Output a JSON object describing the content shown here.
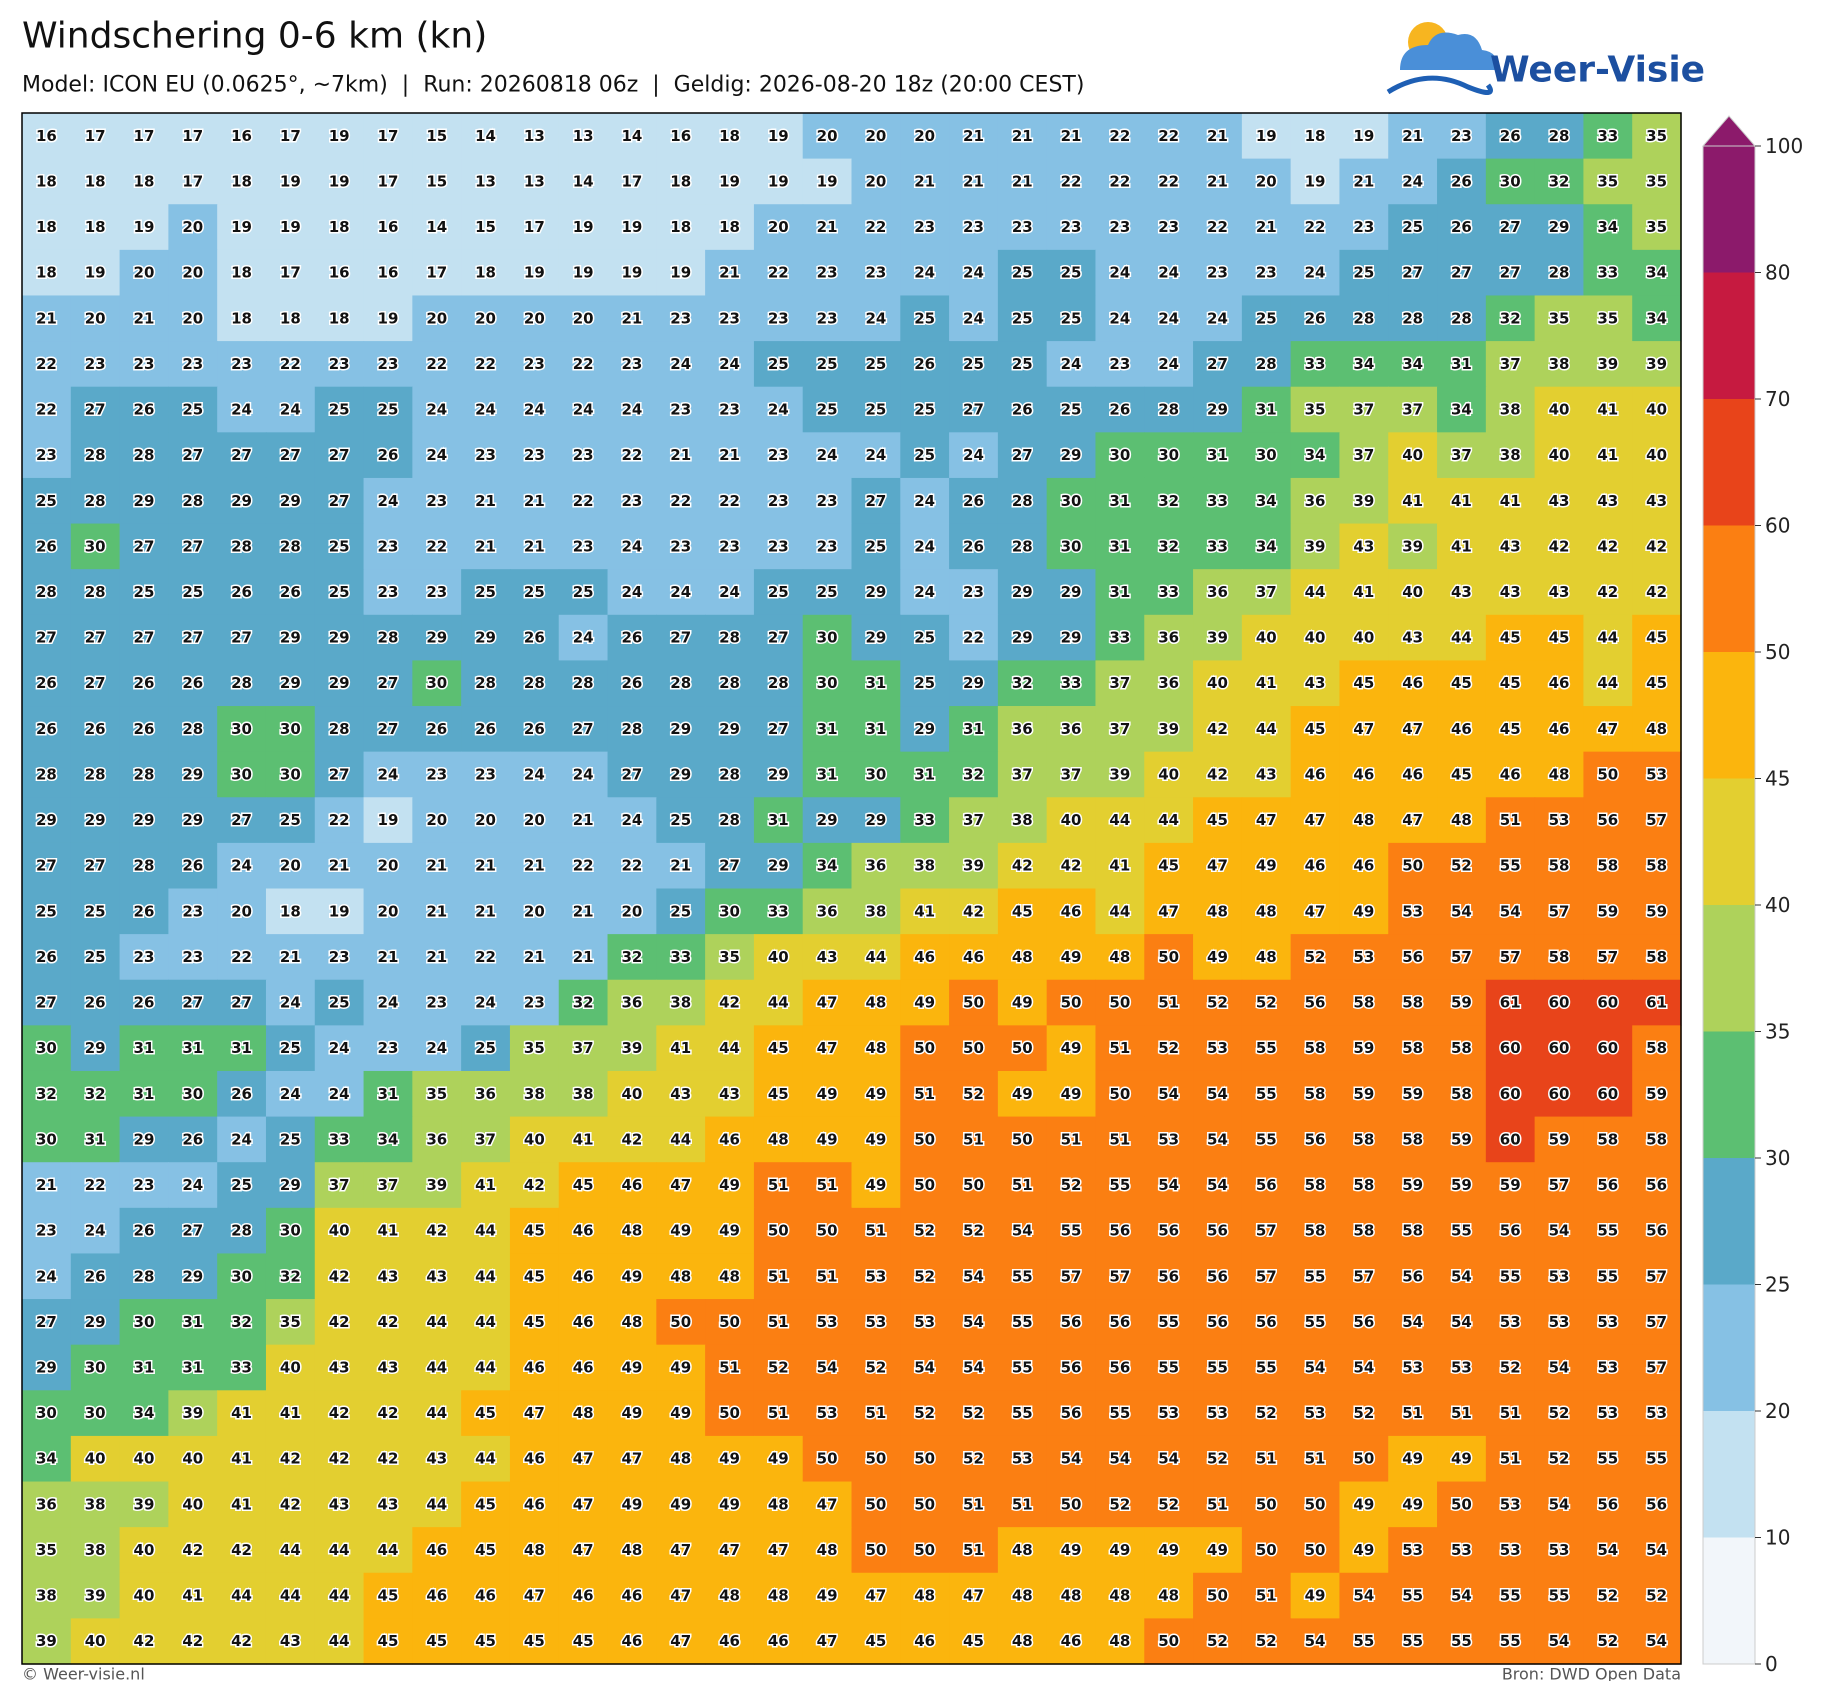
{
  "header": {
    "title": "Windschering 0-6 km (kn)",
    "subtitle": "Model: ICON EU (0.0625°, ~7km)  |  Run: 20260818 06z  |  Geldig: 2026-08-20 18z (20:00 CEST)",
    "logo": "Weer-Visie"
  },
  "map": {
    "values": [
      [
        16,
        17,
        17,
        17,
        16,
        17,
        19,
        17,
        15,
        14,
        13,
        13,
        14,
        16,
        18,
        19,
        20,
        20,
        20,
        21,
        21,
        21,
        22,
        22,
        21,
        19,
        18,
        19,
        21,
        23,
        26,
        28,
        33,
        35
      ],
      [
        18,
        18,
        18,
        17,
        18,
        19,
        19,
        17,
        15,
        13,
        13,
        14,
        17,
        18,
        19,
        19,
        19,
        20,
        21,
        21,
        21,
        22,
        22,
        22,
        21,
        20,
        19,
        21,
        24,
        26,
        30,
        32,
        35,
        35
      ],
      [
        18,
        18,
        19,
        20,
        19,
        19,
        18,
        16,
        14,
        15,
        17,
        19,
        19,
        18,
        18,
        20,
        21,
        22,
        23,
        23,
        23,
        23,
        23,
        23,
        22,
        21,
        22,
        23,
        25,
        26,
        27,
        29,
        34,
        35
      ],
      [
        18,
        19,
        20,
        20,
        18,
        17,
        16,
        16,
        17,
        18,
        19,
        19,
        19,
        19,
        21,
        22,
        23,
        23,
        24,
        24,
        25,
        25,
        24,
        24,
        23,
        23,
        24,
        25,
        27,
        27,
        27,
        28,
        33,
        34
      ],
      [
        21,
        20,
        21,
        20,
        18,
        18,
        18,
        19,
        20,
        20,
        20,
        20,
        21,
        23,
        23,
        23,
        23,
        24,
        25,
        24,
        25,
        25,
        24,
        24,
        24,
        25,
        26,
        28,
        28,
        28,
        32,
        35,
        35,
        34
      ],
      [
        22,
        23,
        23,
        23,
        23,
        22,
        23,
        23,
        22,
        22,
        23,
        22,
        23,
        24,
        24,
        25,
        25,
        25,
        26,
        25,
        25,
        24,
        23,
        24,
        27,
        28,
        33,
        34,
        34,
        31,
        37,
        38,
        39,
        39
      ],
      [
        22,
        27,
        26,
        25,
        24,
        24,
        25,
        25,
        24,
        24,
        24,
        24,
        24,
        23,
        23,
        24,
        25,
        25,
        25,
        27,
        26,
        25,
        26,
        28,
        29,
        31,
        35,
        37,
        37,
        34,
        38,
        40,
        41,
        40
      ],
      [
        23,
        28,
        28,
        27,
        27,
        27,
        27,
        26,
        24,
        23,
        23,
        23,
        22,
        21,
        21,
        23,
        24,
        24,
        25,
        24,
        27,
        29,
        30,
        30,
        31,
        30,
        34,
        37,
        40,
        37,
        38,
        40,
        41,
        40
      ],
      [
        25,
        28,
        29,
        28,
        29,
        29,
        27,
        24,
        23,
        21,
        21,
        22,
        23,
        22,
        22,
        23,
        23,
        27,
        24,
        26,
        28,
        30,
        31,
        32,
        33,
        34,
        36,
        39,
        41,
        41,
        41,
        43,
        43,
        43
      ],
      [
        26,
        30,
        27,
        27,
        28,
        28,
        25,
        23,
        22,
        21,
        21,
        23,
        24,
        23,
        23,
        23,
        23,
        25,
        24,
        26,
        28,
        30,
        31,
        32,
        33,
        34,
        39,
        43,
        39,
        41,
        43,
        42,
        42,
        42
      ],
      [
        28,
        28,
        25,
        25,
        26,
        26,
        25,
        23,
        23,
        25,
        25,
        25,
        24,
        24,
        24,
        25,
        25,
        29,
        24,
        23,
        29,
        29,
        31,
        33,
        36,
        37,
        44,
        41,
        40,
        43,
        43,
        43,
        42,
        42
      ],
      [
        27,
        27,
        27,
        27,
        27,
        29,
        29,
        28,
        29,
        29,
        26,
        24,
        26,
        27,
        28,
        27,
        30,
        29,
        25,
        22,
        29,
        29,
        33,
        36,
        39,
        40,
        40,
        40,
        43,
        44,
        45,
        45,
        44,
        45
      ],
      [
        26,
        27,
        26,
        26,
        28,
        29,
        29,
        27,
        30,
        28,
        28,
        28,
        26,
        28,
        28,
        28,
        30,
        31,
        25,
        29,
        32,
        33,
        37,
        36,
        40,
        41,
        43,
        45,
        46,
        45,
        45,
        46,
        44,
        45
      ],
      [
        26,
        26,
        26,
        28,
        30,
        30,
        28,
        27,
        26,
        26,
        26,
        27,
        28,
        29,
        29,
        27,
        31,
        31,
        29,
        31,
        36,
        36,
        37,
        39,
        42,
        44,
        45,
        47,
        47,
        46,
        45,
        46,
        47,
        48
      ],
      [
        28,
        28,
        28,
        29,
        30,
        30,
        27,
        24,
        23,
        23,
        24,
        24,
        27,
        29,
        28,
        29,
        31,
        30,
        31,
        32,
        37,
        37,
        39,
        40,
        42,
        43,
        46,
        46,
        46,
        45,
        46,
        48,
        50,
        53
      ],
      [
        29,
        29,
        29,
        29,
        27,
        25,
        22,
        19,
        20,
        20,
        20,
        21,
        24,
        25,
        28,
        31,
        29,
        29,
        33,
        37,
        38,
        40,
        44,
        44,
        45,
        47,
        47,
        48,
        47,
        48,
        51,
        53,
        56,
        57
      ],
      [
        27,
        27,
        28,
        26,
        24,
        20,
        21,
        20,
        21,
        21,
        21,
        22,
        22,
        21,
        27,
        29,
        34,
        36,
        38,
        39,
        42,
        42,
        41,
        45,
        47,
        49,
        46,
        46,
        50,
        52,
        55,
        58,
        58,
        58
      ],
      [
        25,
        25,
        26,
        23,
        20,
        18,
        19,
        20,
        21,
        21,
        20,
        21,
        20,
        25,
        30,
        33,
        36,
        38,
        41,
        42,
        45,
        46,
        44,
        47,
        48,
        48,
        47,
        49,
        53,
        54,
        54,
        57,
        59,
        59
      ],
      [
        26,
        25,
        23,
        23,
        22,
        21,
        23,
        21,
        21,
        22,
        21,
        21,
        32,
        33,
        35,
        40,
        43,
        44,
        46,
        46,
        48,
        49,
        48,
        50,
        49,
        48,
        52,
        53,
        56,
        57,
        57,
        58,
        57,
        58
      ],
      [
        27,
        26,
        26,
        27,
        27,
        24,
        25,
        24,
        23,
        24,
        23,
        32,
        36,
        38,
        42,
        44,
        47,
        48,
        49,
        50,
        49,
        50,
        50,
        51,
        52,
        52,
        56,
        58,
        58,
        59,
        61,
        60,
        60,
        61
      ],
      [
        30,
        29,
        31,
        31,
        31,
        25,
        24,
        23,
        24,
        25,
        35,
        37,
        39,
        41,
        44,
        45,
        47,
        48,
        50,
        50,
        50,
        49,
        51,
        52,
        53,
        55,
        58,
        59,
        58,
        58,
        60,
        60,
        60,
        58
      ],
      [
        32,
        32,
        31,
        30,
        26,
        24,
        24,
        31,
        35,
        36,
        38,
        38,
        40,
        43,
        43,
        45,
        49,
        49,
        51,
        52,
        49,
        49,
        50,
        54,
        54,
        55,
        58,
        59,
        59,
        58,
        60,
        60,
        60,
        59
      ],
      [
        30,
        31,
        29,
        26,
        24,
        25,
        33,
        34,
        36,
        37,
        40,
        41,
        42,
        44,
        46,
        48,
        49,
        49,
        50,
        51,
        50,
        51,
        51,
        53,
        54,
        55,
        56,
        58,
        58,
        59,
        60,
        59,
        58,
        58
      ],
      [
        21,
        22,
        23,
        24,
        25,
        29,
        37,
        37,
        39,
        41,
        42,
        45,
        46,
        47,
        49,
        51,
        51,
        49,
        50,
        50,
        51,
        52,
        55,
        54,
        54,
        56,
        58,
        58,
        59,
        59,
        59,
        57,
        56,
        56
      ],
      [
        23,
        24,
        26,
        27,
        28,
        30,
        40,
        41,
        42,
        44,
        45,
        46,
        48,
        49,
        49,
        50,
        50,
        51,
        52,
        52,
        54,
        55,
        56,
        56,
        56,
        57,
        58,
        58,
        58,
        55,
        56,
        54,
        55,
        56
      ],
      [
        24,
        26,
        28,
        29,
        30,
        32,
        42,
        43,
        43,
        44,
        45,
        46,
        49,
        48,
        48,
        51,
        51,
        53,
        52,
        54,
        55,
        57,
        57,
        56,
        56,
        57,
        55,
        57,
        56,
        54,
        55,
        53,
        55,
        57
      ],
      [
        27,
        29,
        30,
        31,
        32,
        35,
        42,
        42,
        44,
        44,
        45,
        46,
        48,
        50,
        50,
        51,
        53,
        53,
        53,
        54,
        55,
        56,
        56,
        55,
        56,
        56,
        55,
        56,
        54,
        54,
        53,
        53,
        53,
        57
      ],
      [
        29,
        30,
        31,
        31,
        33,
        40,
        43,
        43,
        44,
        44,
        46,
        46,
        49,
        49,
        51,
        52,
        54,
        52,
        54,
        54,
        55,
        56,
        56,
        55,
        55,
        55,
        54,
        54,
        53,
        53,
        52,
        54,
        53,
        57
      ],
      [
        30,
        30,
        34,
        39,
        41,
        41,
        42,
        42,
        44,
        45,
        47,
        48,
        49,
        49,
        50,
        51,
        53,
        51,
        52,
        52,
        55,
        56,
        55,
        53,
        53,
        52,
        53,
        52,
        51,
        51,
        51,
        52,
        53,
        53
      ],
      [
        34,
        40,
        40,
        40,
        41,
        42,
        42,
        42,
        43,
        44,
        46,
        47,
        47,
        48,
        49,
        49,
        50,
        50,
        50,
        52,
        53,
        54,
        54,
        54,
        52,
        51,
        51,
        50,
        49,
        49,
        51,
        52,
        55,
        55
      ],
      [
        36,
        38,
        39,
        40,
        41,
        42,
        43,
        43,
        44,
        45,
        46,
        47,
        49,
        49,
        49,
        48,
        47,
        50,
        50,
        51,
        51,
        50,
        52,
        52,
        51,
        50,
        50,
        49,
        49,
        50,
        53,
        54,
        56,
        56
      ],
      [
        35,
        38,
        40,
        42,
        42,
        44,
        44,
        44,
        46,
        45,
        48,
        47,
        48,
        47,
        47,
        47,
        48,
        50,
        50,
        51,
        48,
        49,
        49,
        49,
        49,
        50,
        50,
        49,
        53,
        53,
        53,
        53,
        54,
        54
      ],
      [
        38,
        39,
        40,
        41,
        44,
        44,
        44,
        45,
        46,
        46,
        47,
        46,
        46,
        47,
        48,
        48,
        49,
        47,
        48,
        47,
        48,
        48,
        48,
        48,
        50,
        51,
        49,
        54,
        55,
        54,
        55,
        55,
        52,
        52
      ],
      [
        39,
        40,
        42,
        42,
        42,
        43,
        44,
        45,
        45,
        45,
        45,
        45,
        46,
        47,
        46,
        46,
        47,
        45,
        46,
        45,
        48,
        46,
        48,
        50,
        52,
        52,
        54,
        55,
        55,
        55,
        55,
        54,
        52,
        54
      ]
    ]
  },
  "colorbar": {
    "levels": [
      0,
      10,
      20,
      25,
      30,
      35,
      40,
      45,
      50,
      60,
      70,
      80,
      100
    ],
    "colors": [
      "#f2f6fa",
      "#c3e1f1",
      "#86c1e4",
      "#5aa9c9",
      "#5cbf72",
      "#aed25b",
      "#e3cf30",
      "#fbb50d",
      "#fb7f12",
      "#e8441a",
      "#c61a40",
      "#8c1a6b"
    ]
  },
  "footer": {
    "copyright": "© Weer-visie.nl",
    "source": "Bron: DWD Open Data"
  }
}
